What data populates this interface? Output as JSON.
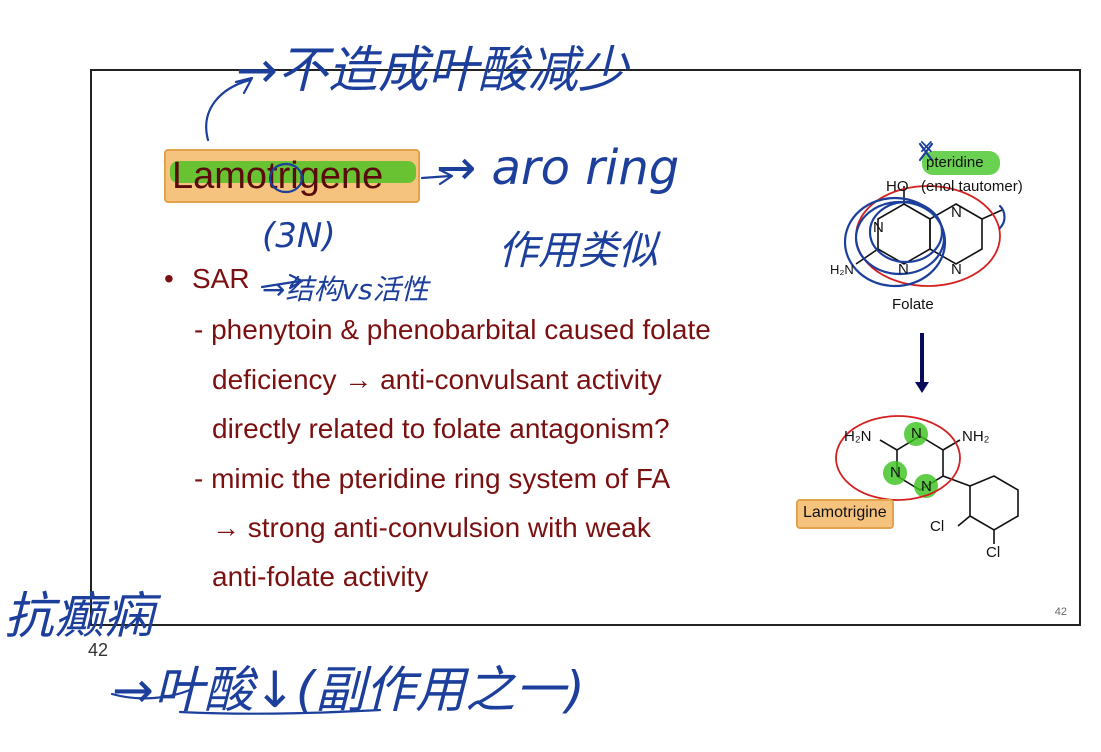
{
  "slide": {
    "title": "Lamotrigene",
    "bullet_marker": "•",
    "sar_label": "SAR",
    "lines": [
      "- phenytoin & phenobarbital caused folate",
      "deficiency → anti-convulsant activity",
      "directly related to folate antagonism?",
      "- mimic the pteridine ring system of FA",
      "→ strong anti-convulsion with weak",
      "anti-folate activity"
    ],
    "page_number": "42",
    "page_number_outer": "42"
  },
  "diagram": {
    "pteridine_label": "pteridine",
    "enol_tautomer": "(enol tautomer)",
    "ho_label": "HO",
    "h2n_label": "H₂N",
    "folate_label": "Folate",
    "n_label": "N",
    "lamotrigine_h2n": "H₂N",
    "lamotrigine_nh2": "NH₂",
    "cl_label": "Cl",
    "lamotrigine_badge": "Lamotrigine"
  },
  "handwriting": {
    "top_note": "→不造成叶酸减少",
    "aro_ring": "→ aro ring",
    "three_n": "(3N)",
    "role_note": "作用类似",
    "sar_note": "→结构vs活性",
    "left_note": "抗癫痫",
    "bottom_note": "→叶酸↓(副作用之一)",
    "x_mark": "×"
  },
  "colors": {
    "text_dark_red": "#7b1010",
    "highlight_orange": "#f6c37e",
    "highlight_green": "#38c21a",
    "ink_blue": "#1c3f9c",
    "circle_red": "#d42020"
  }
}
